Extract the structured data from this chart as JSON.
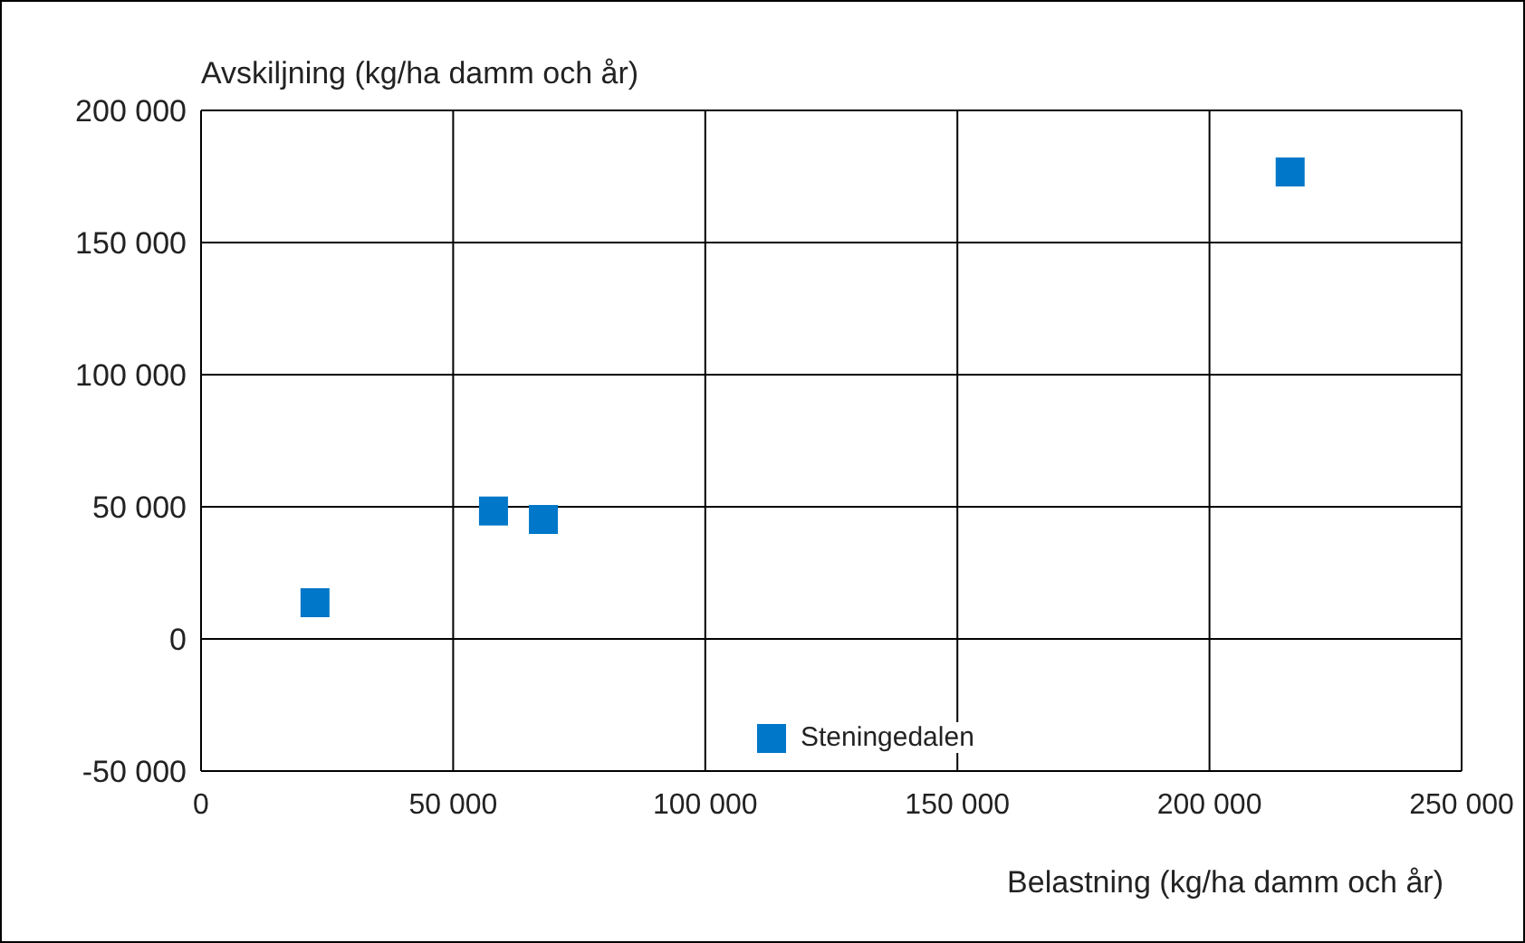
{
  "chart_data": {
    "type": "scatter",
    "xlabel": "Belastning (kg/ha damm och år)",
    "ylabel": "Avskiljning (kg/ha damm och år)",
    "x": [
      22600,
      58000,
      67900,
      216000
    ],
    "series": [
      {
        "name": "Steningedalen",
        "color": "#0077c8",
        "values": [
          13700,
          48400,
          45200,
          176700
        ]
      }
    ],
    "xlim": [
      0,
      250000
    ],
    "xticks": [
      {
        "value": 0,
        "label": "0"
      },
      {
        "value": 50000,
        "label": "50 000"
      },
      {
        "value": 100000,
        "label": "100 000"
      },
      {
        "value": 150000,
        "label": "150 000"
      },
      {
        "value": 200000,
        "label": "200 000"
      },
      {
        "value": 250000,
        "label": "250 000"
      }
    ],
    "ylim": [
      -50000,
      200000
    ],
    "yticks": [
      {
        "value": -50000,
        "label": "-50 000"
      },
      {
        "value": 0,
        "label": "0"
      },
      {
        "value": 50000,
        "label": "50 000"
      },
      {
        "value": 100000,
        "label": "100 000"
      },
      {
        "value": 150000,
        "label": "150 000"
      },
      {
        "value": 200000,
        "label": "200 000"
      }
    ],
    "grid": true,
    "legend": "bottom",
    "marker": "square"
  }
}
